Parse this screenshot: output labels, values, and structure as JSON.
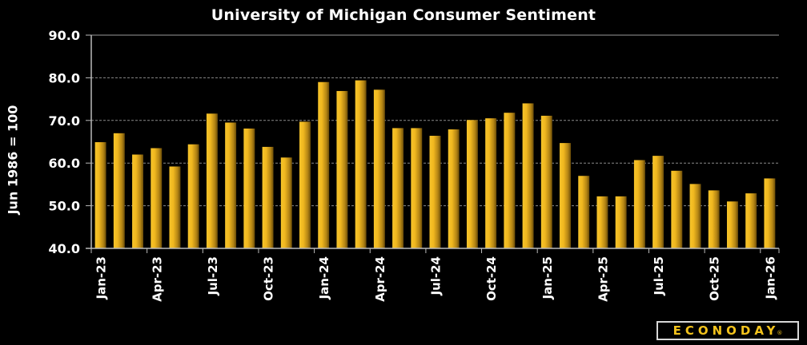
{
  "chart_data": {
    "type": "bar",
    "title": "University of Michigan Consumer Sentiment",
    "xlabel": "",
    "ylabel": "Jun 1986 = 100",
    "ylim": [
      40,
      90
    ],
    "yticks": [
      "40.0",
      "50.0",
      "60.0",
      "70.0",
      "80.0",
      "90.0"
    ],
    "ytick_values": [
      40,
      50,
      60,
      70,
      80,
      90
    ],
    "grid": true,
    "legend": "none",
    "bar_color": "#f4c01e",
    "categories": [
      "Jan-23",
      "Feb-23",
      "Mar-23",
      "Apr-23",
      "May-23",
      "Jun-23",
      "Jul-23",
      "Aug-23",
      "Sep-23",
      "Oct-23",
      "Nov-23",
      "Dec-23",
      "Jan-24",
      "Feb-24",
      "Mar-24",
      "Apr-24",
      "May-24",
      "Jun-24",
      "Jul-24",
      "Aug-24",
      "Sep-24",
      "Oct-24",
      "Nov-24",
      "Dec-24",
      "Jan-25",
      "Feb-25",
      "Mar-25",
      "Apr-25",
      "May-25",
      "Jun-25",
      "Jul-25",
      "Aug-25",
      "Sep-25",
      "Oct-25",
      "Nov-25",
      "Dec-25",
      "Jan-26"
    ],
    "values": [
      64.9,
      67.0,
      62.0,
      63.5,
      59.2,
      64.4,
      71.6,
      69.5,
      68.1,
      63.8,
      61.3,
      69.7,
      79.0,
      76.9,
      79.4,
      77.2,
      68.2,
      68.2,
      66.4,
      67.9,
      70.1,
      70.5,
      71.8,
      74.0,
      71.1,
      64.7,
      57.0,
      52.2,
      52.2,
      60.7,
      61.7,
      58.2,
      55.1,
      53.6,
      51.0,
      52.9,
      56.4
    ],
    "xtick_labels": [
      "Jan-23",
      "Apr-23",
      "Jul-23",
      "Oct-23",
      "Jan-24",
      "Apr-24",
      "Jul-24",
      "Oct-24",
      "Jan-25",
      "Apr-25",
      "Jul-25",
      "Oct-25",
      "Jan-26"
    ]
  },
  "branding": {
    "logo_text": "ECONODAY",
    "logo_mark": "®"
  }
}
